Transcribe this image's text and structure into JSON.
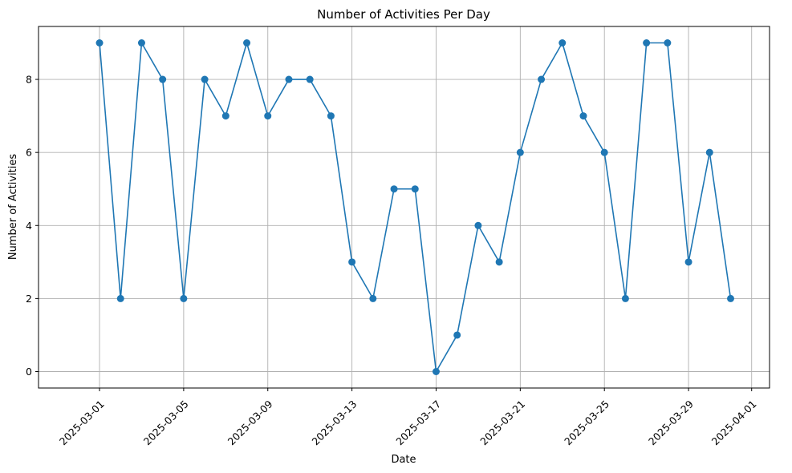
{
  "chart_data": {
    "type": "line",
    "title": "Number of Activities Per Day",
    "xlabel": "Date",
    "ylabel": "Number of Activities",
    "x_tick_labels": [
      "2025-03-01",
      "2025-03-05",
      "2025-03-09",
      "2025-03-13",
      "2025-03-17",
      "2025-03-21",
      "2025-03-25",
      "2025-03-29",
      "2025-04-01"
    ],
    "y_tick_labels": [
      "0",
      "2",
      "4",
      "6",
      "8"
    ],
    "ylim": [
      -0.45,
      9.45
    ],
    "xlim": [
      "2025-02-26",
      "2025-04-02"
    ],
    "grid": true,
    "line_color": "#1f77b4",
    "marker": "circle",
    "series": [
      {
        "x": [
          "2025-03-01",
          "2025-03-02",
          "2025-03-03",
          "2025-03-04",
          "2025-03-05",
          "2025-03-06",
          "2025-03-07",
          "2025-03-08",
          "2025-03-09",
          "2025-03-10",
          "2025-03-11",
          "2025-03-12",
          "2025-03-13",
          "2025-03-14",
          "2025-03-15",
          "2025-03-16",
          "2025-03-17",
          "2025-03-18",
          "2025-03-19",
          "2025-03-20",
          "2025-03-21",
          "2025-03-22",
          "2025-03-23",
          "2025-03-24",
          "2025-03-25",
          "2025-03-26",
          "2025-03-27",
          "2025-03-28",
          "2025-03-29",
          "2025-03-30",
          "2025-03-31"
        ],
        "values": [
          9,
          2,
          9,
          8,
          2,
          8,
          7,
          9,
          7,
          8,
          8,
          7,
          3,
          2,
          5,
          5,
          0,
          1,
          4,
          3,
          6,
          8,
          9,
          7,
          6,
          2,
          9,
          9,
          3,
          6,
          2
        ]
      }
    ]
  }
}
